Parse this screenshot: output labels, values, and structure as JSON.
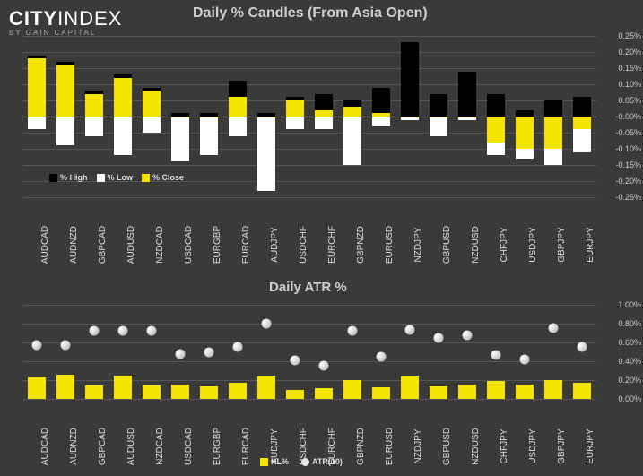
{
  "logo": {
    "city": "CITY",
    "index": "INDEX",
    "sub": "BY GAIN CAPITAL"
  },
  "chart1": {
    "title": "Daily % Candles (From Asia Open)",
    "ymin": -0.25,
    "ymax": 0.25,
    "ystep": 0.05,
    "categories": [
      "AUDCAD",
      "AUDNZD",
      "GBPCAD",
      "AUDUSD",
      "NZDCAD",
      "USDCAD",
      "EURGBP",
      "EURCAD",
      "AUDJPY",
      "USDCHF",
      "EURCHF",
      "GBPNZD",
      "EURUSD",
      "NZDJPY",
      "GBPUSD",
      "NZDUSD",
      "CHFJPY",
      "USDJPY",
      "GBPJPY",
      "EURJPY"
    ],
    "high": [
      0.19,
      0.17,
      0.08,
      0.13,
      0.09,
      0.01,
      0.01,
      0.11,
      0.01,
      0.06,
      0.07,
      0.05,
      0.09,
      0.23,
      0.07,
      0.14,
      0.07,
      0.02,
      0.05,
      0.06
    ],
    "low": [
      -0.04,
      -0.09,
      -0.06,
      -0.12,
      -0.05,
      -0.14,
      -0.12,
      -0.06,
      -0.23,
      -0.04,
      -0.04,
      -0.15,
      -0.03,
      -0.01,
      -0.06,
      -0.01,
      -0.12,
      -0.13,
      -0.15,
      -0.11
    ],
    "close": [
      0.18,
      0.16,
      0.07,
      0.12,
      0.08,
      0.0,
      0.0,
      0.06,
      0.0,
      0.05,
      0.02,
      0.03,
      0.01,
      0.0,
      0.0,
      0.0,
      -0.08,
      -0.1,
      -0.1,
      -0.04
    ],
    "colors": {
      "high": "#000000",
      "low": "#ffffff",
      "close": "#f5e400",
      "grid": "#555555",
      "zero": "#999999"
    },
    "legend": [
      "% High",
      "% Low",
      "% Close"
    ]
  },
  "chart2": {
    "title": "Daily ATR %",
    "ymin": 0.0,
    "ymax": 1.0,
    "ystep": 0.2,
    "categories": [
      "AUDCAD",
      "AUDNZD",
      "GBPCAD",
      "AUDUSD",
      "NZDCAD",
      "USDCAD",
      "EURGBP",
      "EURCAD",
      "AUDJPY",
      "USDCHF",
      "EURCHF",
      "GBPNZD",
      "EURUSD",
      "NZDJPY",
      "GBPUSD",
      "NZDUSD",
      "CHFJPY",
      "USDJPY",
      "GBPJPY",
      "EURJPY"
    ],
    "hl": [
      0.23,
      0.26,
      0.14,
      0.25,
      0.14,
      0.15,
      0.13,
      0.17,
      0.24,
      0.1,
      0.11,
      0.2,
      0.12,
      0.24,
      0.13,
      0.15,
      0.19,
      0.15,
      0.2,
      0.17
    ],
    "atr": [
      0.57,
      0.57,
      0.72,
      0.72,
      0.72,
      0.48,
      0.5,
      0.55,
      0.8,
      0.41,
      0.35,
      0.72,
      0.45,
      0.73,
      0.65,
      0.68,
      0.47,
      0.42,
      0.75,
      0.55
    ],
    "colors": {
      "hl": "#f5e400",
      "atr": "#e8e8e8",
      "grid": "#555555"
    },
    "legend": [
      "HL%",
      "ATR(10)"
    ]
  }
}
